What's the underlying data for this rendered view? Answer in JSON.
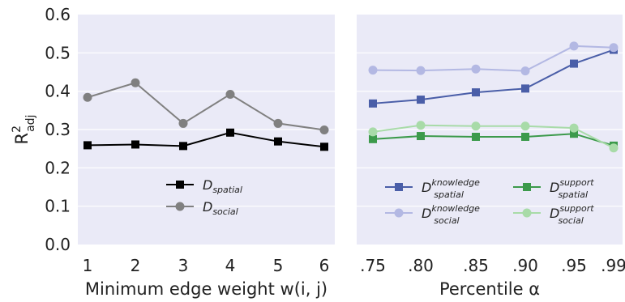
{
  "chart_data": [
    {
      "type": "line",
      "xlabel": "Minimum edge weight w(i, j)",
      "ylabel": "R",
      "ylabel_sup": "2",
      "ylabel_sub": "adj",
      "ylim": [
        0,
        0.6
      ],
      "yticks": [
        "0.0",
        "0.1",
        "0.2",
        "0.3",
        "0.4",
        "0.5",
        "0.6"
      ],
      "categories": [
        "1",
        "2",
        "3",
        "4",
        "5",
        "6"
      ],
      "legend_position": "lower-center",
      "grid": true,
      "series": [
        {
          "name_main": "D",
          "name_sub": "spatial",
          "color": "#000000",
          "marker": "square",
          "values": [
            0.259,
            0.261,
            0.257,
            0.292,
            0.269,
            0.255
          ]
        },
        {
          "name_main": "D",
          "name_sub": "social",
          "color": "#808080",
          "marker": "circle",
          "values": [
            0.384,
            0.422,
            0.316,
            0.392,
            0.316,
            0.299
          ]
        }
      ]
    },
    {
      "type": "line",
      "xlabel": "Percentile α",
      "ylim": [
        0,
        0.6
      ],
      "categories": [
        ".75",
        ".80",
        ".85",
        ".90",
        ".95",
        ".99"
      ],
      "legend_position": "lower-center",
      "grid": true,
      "series": [
        {
          "name_main": "D",
          "name_sup": "knowledge",
          "name_sub": "spatial",
          "color": "#4a5ea8",
          "marker": "square",
          "values": [
            0.368,
            0.378,
            0.397,
            0.407,
            0.472,
            0.508
          ]
        },
        {
          "name_main": "D",
          "name_sup": "knowledge",
          "name_sub": "social",
          "color": "#b3b8e3",
          "marker": "circle",
          "values": [
            0.455,
            0.454,
            0.458,
            0.453,
            0.518,
            0.514
          ]
        },
        {
          "name_main": "D",
          "name_sup": "support",
          "name_sub": "spatial",
          "color": "#3c9a4b",
          "marker": "square",
          "values": [
            0.275,
            0.283,
            0.281,
            0.281,
            0.289,
            0.258
          ]
        },
        {
          "name_main": "D",
          "name_sup": "support",
          "name_sub": "social",
          "color": "#a8dba8",
          "marker": "circle",
          "values": [
            0.294,
            0.311,
            0.309,
            0.309,
            0.304,
            0.252
          ]
        }
      ]
    }
  ]
}
